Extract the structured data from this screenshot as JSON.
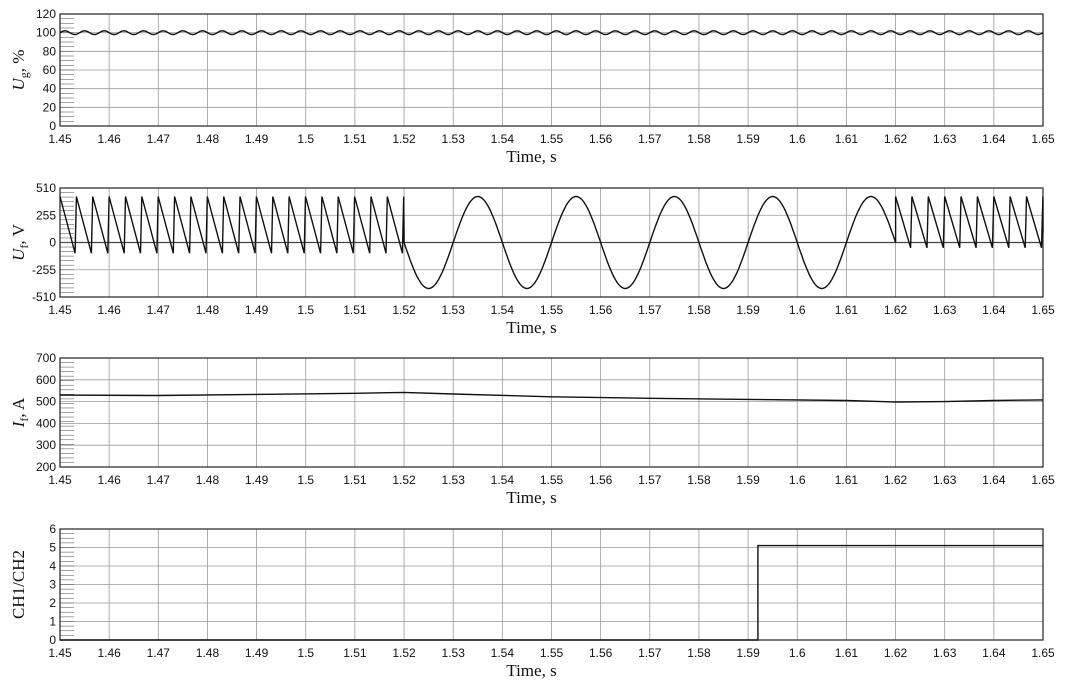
{
  "chart_data": [
    {
      "type": "line",
      "ylabel": "U_g, %",
      "ylabel_main": "U",
      "ylabel_sub": "g",
      "ylabel_unit": ", %",
      "xlabel": "Time,  s",
      "xlim": [
        1.45,
        1.65
      ],
      "ylim": [
        0,
        120
      ],
      "x_ticks": [
        "1.45",
        "1.46",
        "1.47",
        "1.48",
        "1.49",
        "1.5",
        "1.51",
        "1.52",
        "1.53",
        "1.54",
        "1.55",
        "1.56",
        "1.57",
        "1.58",
        "1.59",
        "1.6",
        "1.61",
        "1.62",
        "1.63",
        "1.64",
        "1.65"
      ],
      "y_ticks": [
        "0",
        "20",
        "40",
        "60",
        "80",
        "100",
        "120"
      ],
      "grid": true,
      "series": [
        {
          "kind": "ripple",
          "base": 100,
          "amplitude": 2,
          "period": 0.004,
          "x_start": 1.45,
          "x_end": 1.65
        }
      ]
    },
    {
      "type": "line",
      "ylabel": "U_f, V",
      "ylabel_main": "U",
      "ylabel_sub": "f",
      "ylabel_unit": ",  V",
      "xlabel": "Time,  s",
      "xlim": [
        1.45,
        1.65
      ],
      "ylim": [
        -510,
        510
      ],
      "x_ticks": [
        "1.45",
        "1.46",
        "1.47",
        "1.48",
        "1.49",
        "1.5",
        "1.51",
        "1.52",
        "1.53",
        "1.54",
        "1.55",
        "1.56",
        "1.57",
        "1.58",
        "1.59",
        "1.6",
        "1.61",
        "1.62",
        "1.63",
        "1.64",
        "1.65"
      ],
      "y_ticks": [
        "-510",
        "-255",
        "0",
        "255",
        "510"
      ],
      "grid": true,
      "series": [
        {
          "kind": "sawtooth",
          "x_start": 1.45,
          "x_end": 1.52,
          "period": 0.00333,
          "low": -100,
          "high": 430
        },
        {
          "kind": "sine",
          "x_start": 1.52,
          "x_end": 1.62,
          "period": 0.02,
          "amplitude": 430,
          "phase_deg": 180
        },
        {
          "kind": "sawtooth",
          "x_start": 1.62,
          "x_end": 1.65,
          "period": 0.00333,
          "low": -50,
          "high": 430
        }
      ]
    },
    {
      "type": "line",
      "ylabel": "I_f, A",
      "ylabel_main": "I",
      "ylabel_sub": "f",
      "ylabel_unit": ",  A",
      "xlabel": "Time,  s",
      "xlim": [
        1.45,
        1.65
      ],
      "ylim": [
        200,
        700
      ],
      "x_ticks": [
        "1.45",
        "1.46",
        "1.47",
        "1.48",
        "1.49",
        "1.5",
        "1.51",
        "1.52",
        "1.53",
        "1.54",
        "1.55",
        "1.56",
        "1.57",
        "1.58",
        "1.59",
        "1.6",
        "1.61",
        "1.62",
        "1.63",
        "1.64",
        "1.65"
      ],
      "y_ticks": [
        "200",
        "300",
        "400",
        "500",
        "600",
        "700"
      ],
      "grid": true,
      "series": [
        {
          "kind": "points",
          "x": [
            1.45,
            1.47,
            1.49,
            1.51,
            1.52,
            1.53,
            1.55,
            1.57,
            1.59,
            1.61,
            1.62,
            1.63,
            1.64,
            1.65
          ],
          "y": [
            530,
            528,
            533,
            538,
            542,
            535,
            522,
            515,
            510,
            505,
            498,
            500,
            505,
            508
          ]
        }
      ]
    },
    {
      "type": "line",
      "ylabel": "CH1/CH2",
      "xlabel": "Time,  s",
      "xlim": [
        1.45,
        1.65
      ],
      "ylim": [
        0,
        6
      ],
      "x_ticks": [
        "1.45",
        "1.46",
        "1.47",
        "1.48",
        "1.49",
        "1.5",
        "1.51",
        "1.52",
        "1.53",
        "1.54",
        "1.55",
        "1.56",
        "1.57",
        "1.58",
        "1.59",
        "1.6",
        "1.61",
        "1.62",
        "1.63",
        "1.64",
        "1.65"
      ],
      "y_ticks": [
        "0",
        "1",
        "2",
        "3",
        "4",
        "5",
        "6"
      ],
      "grid": true,
      "series": [
        {
          "kind": "points",
          "x": [
            1.45,
            1.592,
            1.592,
            1.65
          ],
          "y": [
            0,
            0,
            5.1,
            5.1
          ]
        }
      ]
    }
  ]
}
